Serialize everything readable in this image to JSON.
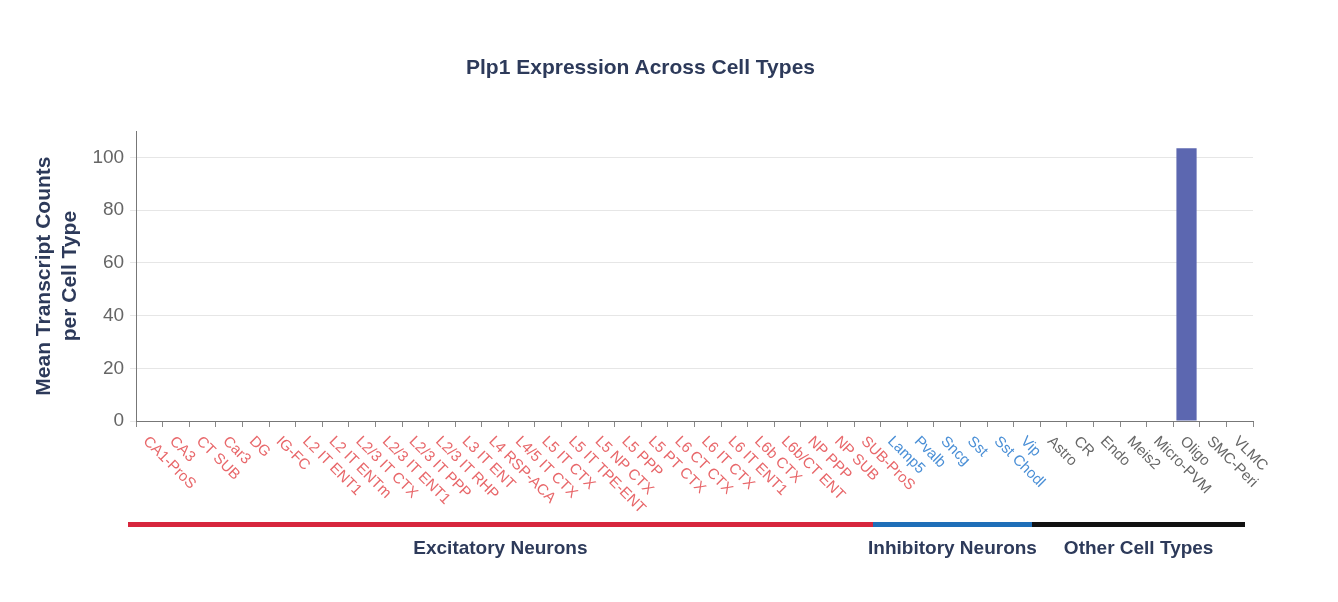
{
  "chart_data": {
    "type": "bar",
    "title": "Plp1 Expression Across Cell Types",
    "ylabel": "Mean Transcript Counts per Cell Type",
    "categories": [
      "CA1-ProS",
      "CA3",
      "CT SUB",
      "Car3",
      "DG",
      "IG-FC",
      "L2 IT ENT1",
      "L2 IT ENTm",
      "L2/3 IT CTX",
      "L2/3 IT ENT1",
      "L2/3 IT PPP",
      "L2/3 IT RHP",
      "L3 IT ENT",
      "L4 RSP-ACA",
      "L4/5 IT CTX",
      "L5 IT CTX",
      "L5 IT TPE-ENT",
      "L5 NP CTX",
      "L5 PPP",
      "L5 PT CTX",
      "L6 CT CTX",
      "L6 IT CTX",
      "L6 IT ENT1",
      "L6b CTX",
      "L6b/CT ENT",
      "NP PPP",
      "NP SUB",
      "SUB-ProS",
      "Lamp5",
      "Pvalb",
      "Sncg",
      "Sst",
      "Sst Chodl",
      "Vip",
      "Astro",
      "CR",
      "Endo",
      "Meis2",
      "Micro-PVM",
      "Oligo",
      "SMC-Peri",
      "VLMC"
    ],
    "values": [
      0,
      0,
      0,
      0,
      0,
      0,
      0,
      0,
      0,
      0,
      0,
      0,
      0,
      0,
      0,
      0,
      0,
      0,
      0,
      0,
      0,
      0,
      0,
      0,
      0,
      0,
      0,
      0,
      0,
      0,
      0,
      0,
      0,
      0,
      0,
      0,
      0,
      0,
      0,
      103.5,
      0,
      0
    ],
    "color": "#5c67b0",
    "ylim": [
      0,
      110
    ],
    "yticks": [
      0,
      20,
      40,
      60,
      80,
      100
    ],
    "grid": "y",
    "annotations": [
      "Excitatory Neurons",
      "Inhibitory Neurons",
      "Other Cell Types"
    ]
  }
}
